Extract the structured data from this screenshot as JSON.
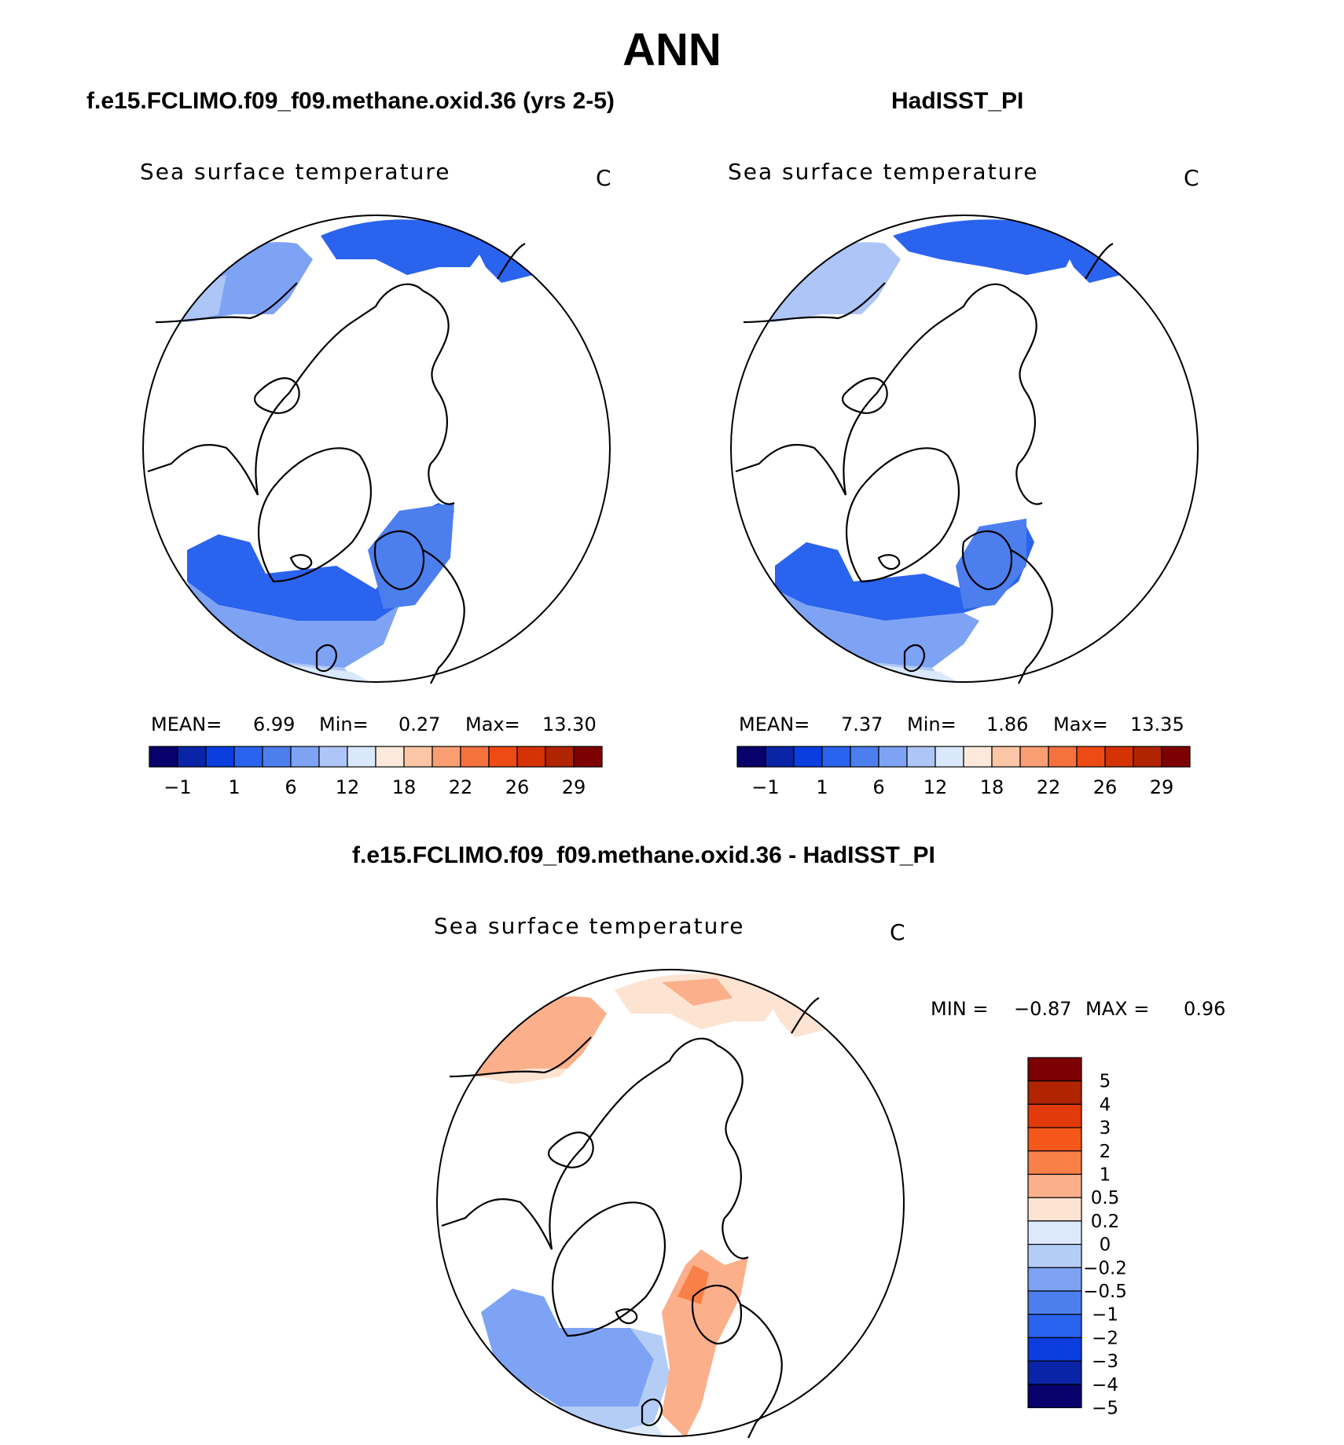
{
  "title": "ANN",
  "panels": {
    "test": {
      "case_title": "f.e15.FCLIMO.f09_f09.methane.oxid.36 (yrs 2-5)",
      "var_title": "Sea surface temperature",
      "units": "C",
      "stats": {
        "mean_label": "MEAN=",
        "mean": "6.99",
        "min_label": "Min=",
        "min": "0.27",
        "max_label": "Max=",
        "max": "13.30"
      }
    },
    "control": {
      "case_title": "HadISST_PI",
      "var_title": "Sea surface temperature",
      "units": "C",
      "stats": {
        "mean_label": "MEAN=",
        "mean": "7.37",
        "min_label": "Min=",
        "min": "1.86",
        "max_label": "Max=",
        "max": "13.35"
      }
    },
    "diff": {
      "case_title": "f.e15.FCLIMO.f09_f09.methane.oxid.36 - HadISST_PI",
      "var_title": "Sea surface temperature",
      "units": "C",
      "stats": {
        "min_label": "MIN =",
        "min": "−0.87",
        "max_label": "MAX =",
        "max": "0.96"
      }
    }
  },
  "colorbar_main": {
    "colors": [
      "#08006b",
      "#0a24a8",
      "#0a3ee0",
      "#2a63ee",
      "#4c7eee",
      "#7ea3f5",
      "#aec6f7",
      "#d9e8fb",
      "#fce9dc",
      "#fcc6a6",
      "#f99e73",
      "#f5723f",
      "#ee4a14",
      "#d53206",
      "#b02402",
      "#7d0003"
    ],
    "labels": [
      "−1",
      "1",
      "6",
      "12",
      "18",
      "22",
      "26",
      "29"
    ]
  },
  "colorbar_diff": {
    "colors": [
      "#7d0003",
      "#b02402",
      "#e23a0a",
      "#f5571a",
      "#f98048",
      "#fbb08b",
      "#fde3d2",
      "#dbe9fb",
      "#b4cdf7",
      "#7ea3f5",
      "#4c7eee",
      "#2a63ee",
      "#0a3ee0",
      "#0a24a8",
      "#08006b"
    ],
    "labels": [
      "5",
      "4",
      "3",
      "2",
      "1",
      "0.5",
      "0.2",
      "0",
      "−0.2",
      "−0.5",
      "−1",
      "−2",
      "−3",
      "−4",
      "−5"
    ]
  }
}
